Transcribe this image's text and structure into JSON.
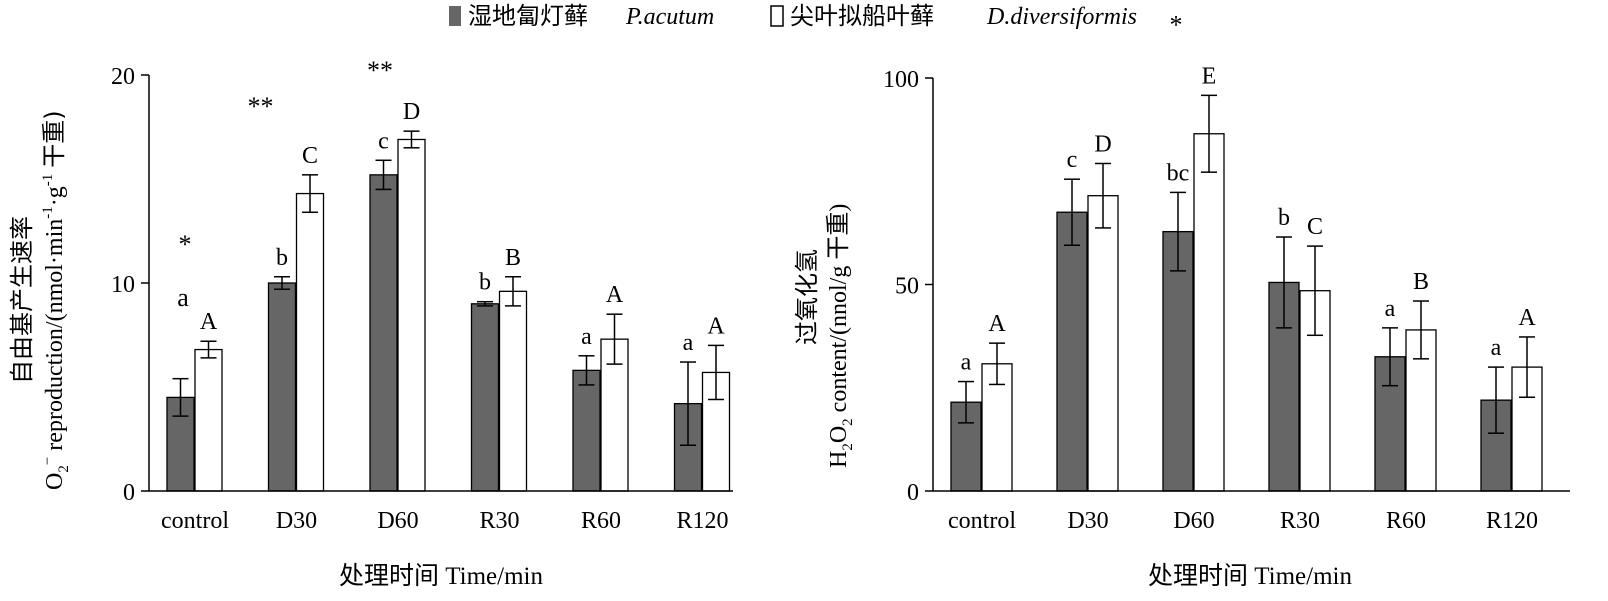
{
  "legend": {
    "items": [
      {
        "swatch": "filled",
        "label_cn": "湿地匐灯藓",
        "label_latin": "P.acutum"
      },
      {
        "swatch": "open",
        "label_cn": "尖叶拟船叶藓",
        "label_latin": "D.diversiformis"
      }
    ]
  },
  "colors": {
    "series_dark": "#666666",
    "series_light": "#ffffff",
    "axis": "#000000"
  },
  "chart_data": [
    {
      "type": "bar",
      "categories": [
        "control",
        "D30",
        "D60",
        "R30",
        "R60",
        "R120"
      ],
      "ylim": [
        0,
        20
      ],
      "yticks": [
        "0",
        "10",
        "20"
      ],
      "xlabel": "处理时间 Time/min",
      "ylabel_cn": "自由基产生速率",
      "ylabel_en": "reproduction/(nmol·min",
      "ylabel_species_main": "O",
      "ylabel_species_sub": "2",
      "ylabel_species_sup": "−",
      "ylabel_exp1": "-1",
      "ylabel_mid": "·g",
      "ylabel_exp2": "-1",
      "ylabel_tail": "干重)",
      "series": [
        {
          "name": "湿地匐灯藓 P.acutum",
          "values": [
            4.5,
            10.0,
            15.2,
            9.0,
            5.8,
            4.2
          ],
          "errors": [
            0.9,
            0.3,
            0.7,
            0.1,
            0.7,
            2.0
          ],
          "labels": [
            "",
            "b",
            "c",
            "b",
            "a",
            "a"
          ]
        },
        {
          "name": "尖叶拟船叶藓 D.diversiformis",
          "values": [
            6.8,
            14.3,
            16.9,
            9.6,
            7.3,
            5.7
          ],
          "errors": [
            0.4,
            0.9,
            0.4,
            0.7,
            1.2,
            1.3
          ],
          "labels": [
            "A",
            "C",
            "D",
            "B",
            "A",
            "A"
          ]
        }
      ],
      "annotations": [
        {
          "category": "control",
          "text": "a"
        },
        {
          "category": "control",
          "text": "*"
        },
        {
          "category": "D30",
          "text": "**"
        },
        {
          "category": "D60",
          "text": "**"
        }
      ]
    },
    {
      "type": "bar",
      "categories": [
        "control",
        "D30",
        "D60",
        "R30",
        "R60",
        "R120"
      ],
      "ylim": [
        0,
        100
      ],
      "yticks": [
        "0",
        "50",
        "100"
      ],
      "xlabel": "处理时间 Time/min",
      "ylabel_cn": "过氧化氢",
      "ylabel_h": "H",
      "ylabel_sub1": "2",
      "ylabel_o": "O",
      "ylabel_sub2": "2",
      "ylabel_rest": " content/(nnol/g 干重)",
      "series": [
        {
          "name": "湿地匐灯藓 P.acutum",
          "values": [
            21.5,
            67.5,
            62.8,
            50.5,
            32.5,
            22.0
          ],
          "errors": [
            5.0,
            8.0,
            9.5,
            11.0,
            7.0,
            8.0
          ],
          "labels": [
            "a",
            "c",
            "bc",
            "b",
            "a",
            "a"
          ]
        },
        {
          "name": "尖叶拟船叶藓 D.diversiformis",
          "values": [
            30.8,
            71.5,
            86.5,
            48.5,
            39.0,
            30.0
          ],
          "errors": [
            5.0,
            7.8,
            9.3,
            10.8,
            7.0,
            7.3
          ],
          "labels": [
            "A",
            "D",
            "E",
            "C",
            "B",
            "A"
          ]
        }
      ],
      "annotations": [
        {
          "category": "D60",
          "text": "*"
        }
      ]
    }
  ]
}
